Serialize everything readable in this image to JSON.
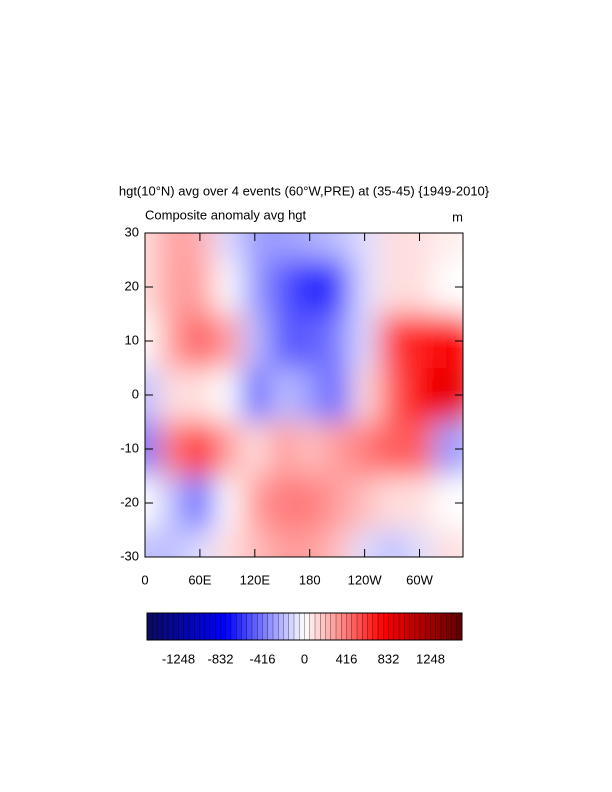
{
  "chart_data": {
    "type": "contour",
    "title": "hgt(10°N) avg over 4 events (60°W,PRE) at (35-45) {1949-2010}",
    "subtitle_left": "Composite anomaly avg hgt",
    "subtitle_right": "m",
    "x": [
      0,
      30,
      60,
      90,
      120,
      150,
      180,
      210,
      240,
      270,
      300,
      330
    ],
    "y": [
      30,
      20,
      10,
      0,
      -10,
      -20,
      -30
    ],
    "z": [
      [
        100,
        300,
        250,
        -100,
        -300,
        -300,
        -250,
        -200,
        -100,
        100,
        100,
        50
      ],
      [
        100,
        300,
        300,
        0,
        -300,
        -500,
        -700,
        -600,
        -100,
        100,
        100,
        0
      ],
      [
        0,
        300,
        500,
        300,
        -200,
        -500,
        -500,
        -400,
        -100,
        600,
        700,
        800
      ],
      [
        -200,
        100,
        100,
        0,
        -500,
        -200,
        -300,
        -500,
        100,
        500,
        800,
        900
      ],
      [
        -400,
        400,
        700,
        300,
        100,
        300,
        200,
        300,
        400,
        500,
        500,
        -300
      ],
      [
        0,
        -200,
        -500,
        0,
        300,
        400,
        400,
        300,
        200,
        100,
        100,
        0
      ],
      [
        -200,
        -200,
        -100,
        100,
        200,
        300,
        300,
        200,
        -100,
        -200,
        -100,
        100
      ]
    ],
    "xlim": [
      0,
      347.5
    ],
    "ylim": [
      -30,
      30
    ],
    "xticks": [
      0,
      {
        "value": 60,
        "label": "60E"
      },
      {
        "value": 120,
        "label": "120E"
      },
      180,
      {
        "value": 240,
        "label": "120W"
      },
      {
        "value": 300,
        "label": "60W"
      }
    ],
    "yticks": [
      -30,
      -20,
      -10,
      0,
      10,
      20,
      30
    ],
    "clim": [
      -1560,
      1560
    ],
    "colorbar_ticks": [
      -1248,
      -832,
      -416,
      0,
      416,
      832,
      1248
    ]
  }
}
